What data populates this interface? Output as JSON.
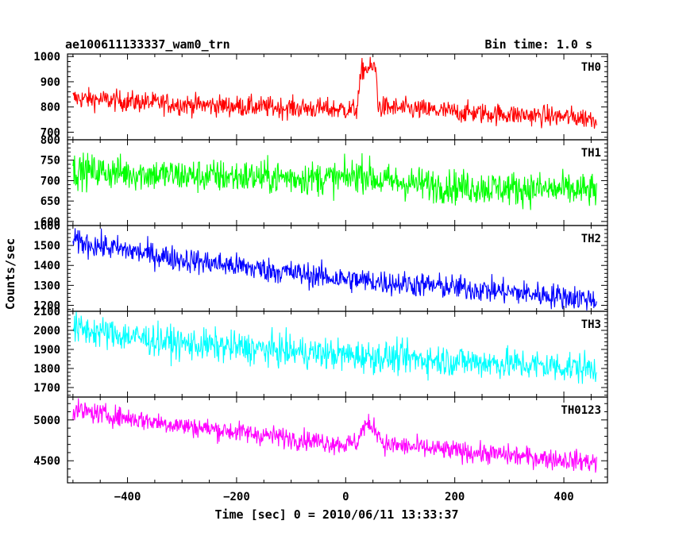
{
  "chart_data": {
    "type": "line",
    "title": "ae100611133337_wam0_trn",
    "bin_time": "Bin time: 1.0 s",
    "xlabel": "Time [sec] 0 = 2010/06/11 13:33:37",
    "ylabel": "Counts/sec",
    "xlim": [
      -510,
      480
    ],
    "x_ticks": [
      -400,
      -200,
      0,
      200,
      400
    ],
    "x_tick_labels": [
      "−400",
      "−200",
      "0",
      "200",
      "400"
    ],
    "x_range": [
      -500,
      460
    ],
    "grid": false,
    "panels": [
      {
        "name": "TH0",
        "color": "#ff0000",
        "ylim": [
          670,
          1010
        ],
        "y_ticks": [
          700,
          800,
          900,
          1000
        ],
        "trend": [
          [
            -500,
            835
          ],
          [
            -300,
            810
          ],
          [
            0,
            790
          ],
          [
            20,
            790
          ],
          [
            30,
            950
          ],
          [
            55,
            955
          ],
          [
            60,
            800
          ],
          [
            200,
            780
          ],
          [
            460,
            755
          ]
        ],
        "noise": 30
      },
      {
        "name": "TH1",
        "color": "#00ff00",
        "ylim": [
          590,
          800
        ],
        "y_ticks": [
          600,
          650,
          700,
          750,
          800
        ],
        "trend": [
          [
            -500,
            725
          ],
          [
            -300,
            712
          ],
          [
            0,
            705
          ],
          [
            30,
            720
          ],
          [
            60,
            700
          ],
          [
            200,
            685
          ],
          [
            460,
            675
          ]
        ],
        "noise": 30
      },
      {
        "name": "TH2",
        "color": "#0000ff",
        "ylim": [
          1170,
          1600
        ],
        "y_ticks": [
          1200,
          1300,
          1400,
          1500,
          1600
        ],
        "trend": [
          [
            -500,
            1520
          ],
          [
            -300,
            1430
          ],
          [
            0,
            1330
          ],
          [
            200,
            1290
          ],
          [
            460,
            1230
          ]
        ],
        "noise": 45
      },
      {
        "name": "TH3",
        "color": "#00ffff",
        "ylim": [
          1650,
          2100
        ],
        "y_ticks": [
          1700,
          1800,
          1900,
          2000,
          2100
        ],
        "trend": [
          [
            -500,
            2010
          ],
          [
            -300,
            1930
          ],
          [
            0,
            1870
          ],
          [
            200,
            1840
          ],
          [
            460,
            1800
          ]
        ],
        "noise": 60
      },
      {
        "name": "TH0123",
        "color": "#ff00ff",
        "ylim": [
          4230,
          5280
        ],
        "y_ticks": [
          4500,
          5000
        ],
        "trend": [
          [
            -500,
            5120
          ],
          [
            -300,
            4930
          ],
          [
            0,
            4700
          ],
          [
            20,
            4720
          ],
          [
            35,
            4940
          ],
          [
            55,
            4900
          ],
          [
            70,
            4700
          ],
          [
            200,
            4620
          ],
          [
            460,
            4480
          ]
        ],
        "noise": 90
      }
    ]
  }
}
